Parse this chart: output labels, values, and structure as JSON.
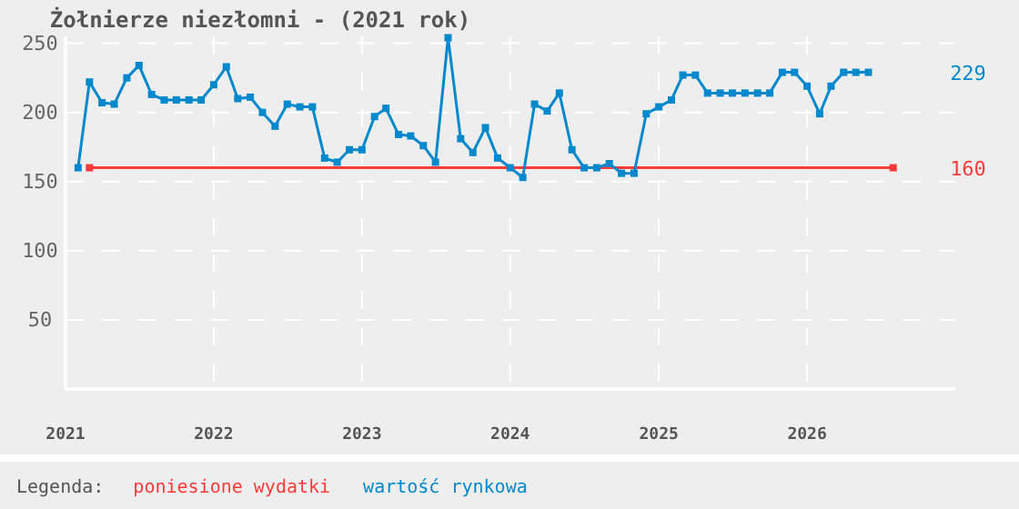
{
  "chart_data": {
    "type": "line",
    "title": "Żołnierze niezłomni - (2021 rok)",
    "legend_title": "Legenda:",
    "legend": "bottom",
    "grid": true,
    "marker": "square",
    "line_style": "solid",
    "xlim": [
      "2021-01",
      "2027-01"
    ],
    "xticks": [
      {
        "value": "2021-01",
        "label": "2021"
      },
      {
        "value": "2022-01",
        "label": "2022"
      },
      {
        "value": "2023-01",
        "label": "2023"
      },
      {
        "value": "2024-01",
        "label": "2024"
      },
      {
        "value": "2025-01",
        "label": "2025"
      },
      {
        "value": "2026-01",
        "label": "2026"
      }
    ],
    "ylim": [
      0,
      255
    ],
    "yticks": [
      50,
      100,
      150,
      200,
      250
    ],
    "series": [
      {
        "name": "poniesione wydatki",
        "color": "#ff3a3a",
        "x": [
          "2021-03",
          "2026-08"
        ],
        "values": [
          160,
          160
        ]
      },
      {
        "name": "wartość rynkowa",
        "color": "#0088cc",
        "x": [
          "2021-02",
          "2021-03",
          "2021-04",
          "2021-05",
          "2021-06",
          "2021-07",
          "2021-08",
          "2021-09",
          "2021-10",
          "2021-11",
          "2021-12",
          "2022-01",
          "2022-02",
          "2022-03",
          "2022-04",
          "2022-05",
          "2022-06",
          "2022-07",
          "2022-08",
          "2022-09",
          "2022-10",
          "2022-11",
          "2022-12",
          "2023-01",
          "2023-02",
          "2023-03",
          "2023-04",
          "2023-05",
          "2023-06",
          "2023-07",
          "2023-08",
          "2023-09",
          "2023-10",
          "2023-11",
          "2023-12",
          "2024-01",
          "2024-02",
          "2024-03",
          "2024-04",
          "2024-05",
          "2024-06",
          "2024-07",
          "2024-08",
          "2024-09",
          "2024-10",
          "2024-11",
          "2024-12",
          "2025-01",
          "2025-02",
          "2025-03",
          "2025-04",
          "2025-05",
          "2025-06",
          "2025-07",
          "2025-08",
          "2025-09",
          "2025-10",
          "2025-11",
          "2025-12",
          "2026-01",
          "2026-02",
          "2026-03",
          "2026-04",
          "2026-05",
          "2026-06"
        ],
        "values": [
          160,
          222,
          207,
          206,
          225,
          234,
          213,
          209,
          209,
          209,
          209,
          220,
          233,
          210,
          211,
          200,
          190,
          206,
          204,
          204,
          167,
          164,
          173,
          173,
          197,
          203,
          184,
          183,
          176,
          164,
          254,
          181,
          171,
          189,
          167,
          160,
          153,
          206,
          201,
          214,
          173,
          160,
          160,
          163,
          156,
          156,
          199,
          204,
          209,
          227,
          227,
          214,
          214,
          214,
          214,
          214,
          214,
          229,
          229,
          219,
          199,
          219,
          229,
          229,
          229
        ]
      }
    ],
    "annotations": [
      "160",
      "229"
    ]
  }
}
